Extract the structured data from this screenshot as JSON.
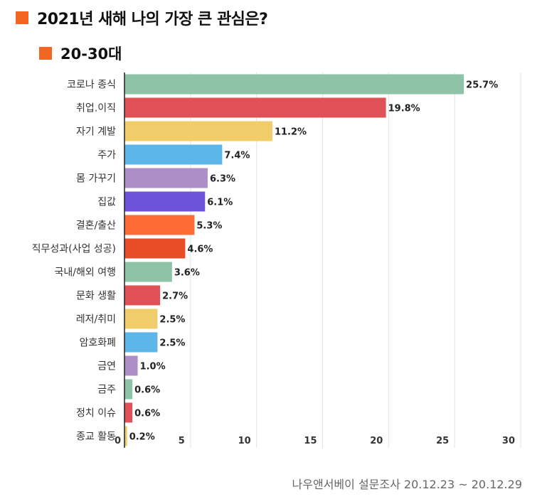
{
  "header": {
    "title": "2021년 새해 나의 가장 큰 관심은?",
    "subtitle": "20-30대",
    "marker_color": "#f26522"
  },
  "source": "나우앤서베이 설문조사 20.12.23 ~ 20.12.29",
  "chart_data": {
    "type": "bar",
    "orientation": "horizontal",
    "title": "2021년 새해 나의 가장 큰 관심은?",
    "subtitle": "20-30대",
    "xlabel": "",
    "ylabel": "",
    "xlim": [
      0,
      30
    ],
    "x_ticks": [
      0,
      5,
      10,
      15,
      20,
      25,
      30
    ],
    "grid": true,
    "value_suffix": "%",
    "categories": [
      "코로나 종식",
      "취업.이직",
      "자기 계발",
      "주가",
      "몸 가꾸기",
      "집값",
      "결혼/출산",
      "직무성과(사업 성공)",
      "국내/해외 여행",
      "문화 생활",
      "레저/취미",
      "암호화폐",
      "금연",
      "금주",
      "정치 이슈",
      "종교 활동"
    ],
    "values": [
      25.7,
      19.8,
      11.2,
      7.4,
      6.3,
      6.1,
      5.3,
      4.6,
      3.6,
      2.7,
      2.5,
      2.5,
      1.0,
      0.6,
      0.6,
      0.2
    ],
    "value_labels": [
      "25.7%",
      "19.8%",
      "11.2%",
      "7.4%",
      "6.3%",
      "6.1%",
      "5.3%",
      "4.6%",
      "3.6%",
      "2.7%",
      "2.5%",
      "2.5%",
      "1.0%",
      "0.6%",
      "0.6%",
      "0.2%"
    ],
    "colors": [
      "#8ec3a7",
      "#e05257",
      "#f0cc6b",
      "#5cb6e8",
      "#ae8ec6",
      "#6c54da",
      "#ff6b35",
      "#e84d25",
      "#8ec3a7",
      "#e05257",
      "#f0cc6b",
      "#5cb6e8",
      "#ae8ec6",
      "#8ec3a7",
      "#e05257",
      "#f0cc6b"
    ]
  }
}
